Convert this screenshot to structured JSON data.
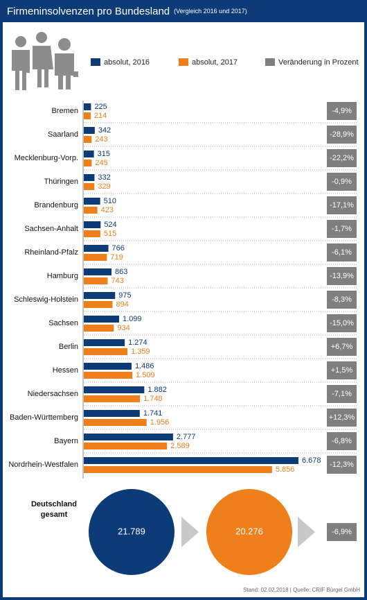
{
  "chart_data": {
    "type": "bar",
    "orientation": "horizontal",
    "title": "Firmeninsolvenzen pro Bundesland",
    "subtitle": "(Vergleich 2016 und 2017)",
    "categories": [
      "Bremen",
      "Saarland",
      "Mecklenburg-Vorp.",
      "Thüringen",
      "Brandenburg",
      "Sachsen-Anhalt",
      "Rheinland-Pfalz",
      "Hamburg",
      "Schleswig-Holstein",
      "Sachsen",
      "Berlin",
      "Hessen",
      "Niedersachsen",
      "Baden-Württemberg",
      "Bayern",
      "Nordrhein-Westfalen"
    ],
    "series": [
      {
        "name": "absolut, 2016",
        "color": "#0d3b78",
        "values": [
          225,
          342,
          315,
          332,
          510,
          524,
          766,
          863,
          975,
          1099,
          1274,
          1486,
          1882,
          1741,
          2777,
          6678
        ],
        "value_labels": [
          "225",
          "342",
          "315",
          "332",
          "510",
          "524",
          "766",
          "863",
          "975",
          "1.099",
          "1.274",
          "1.486",
          "1.882",
          "1.741",
          "2.777",
          "6.678"
        ]
      },
      {
        "name": "absolut, 2017",
        "color": "#ee7f1a",
        "values": [
          214,
          243,
          245,
          329,
          423,
          515,
          719,
          743,
          894,
          934,
          1359,
          1509,
          1748,
          1956,
          2589,
          5856
        ],
        "value_labels": [
          "214",
          "243",
          "245",
          "329",
          "423",
          "515",
          "719",
          "743",
          "894",
          "934",
          "1.359",
          "1.509",
          "1.748",
          "1.956",
          "2.589",
          "5.856"
        ]
      },
      {
        "name": "Veränderung in Prozent",
        "color": "#7f7f7f",
        "values": [
          -4.9,
          -28.9,
          -22.2,
          -0.9,
          -17.1,
          -1.7,
          -6.1,
          -13.9,
          -8.3,
          -15.0,
          6.7,
          1.5,
          -7.1,
          12.3,
          -6.8,
          -12.3
        ],
        "value_labels": [
          "-4,9%",
          "-28,9%",
          "-22,2%",
          "-0,9%",
          "-17,1%",
          "-1,7%",
          "-6,1%",
          "-13,9%",
          "-8,3%",
          "-15,0%",
          "+6,7%",
          "+1,5%",
          "-7,1%",
          "+12,3%",
          "-6,8%",
          "-12,3%"
        ]
      }
    ],
    "total": {
      "label": "Deutschland gesamt",
      "values": [
        21789,
        20276
      ],
      "value_labels": [
        "21.789",
        "20.276"
      ],
      "change": -6.9,
      "change_label": "-6,9%"
    },
    "footer": "Stand: 02.02.2018 | Quelle: CRIF Bürgel GmbH"
  }
}
